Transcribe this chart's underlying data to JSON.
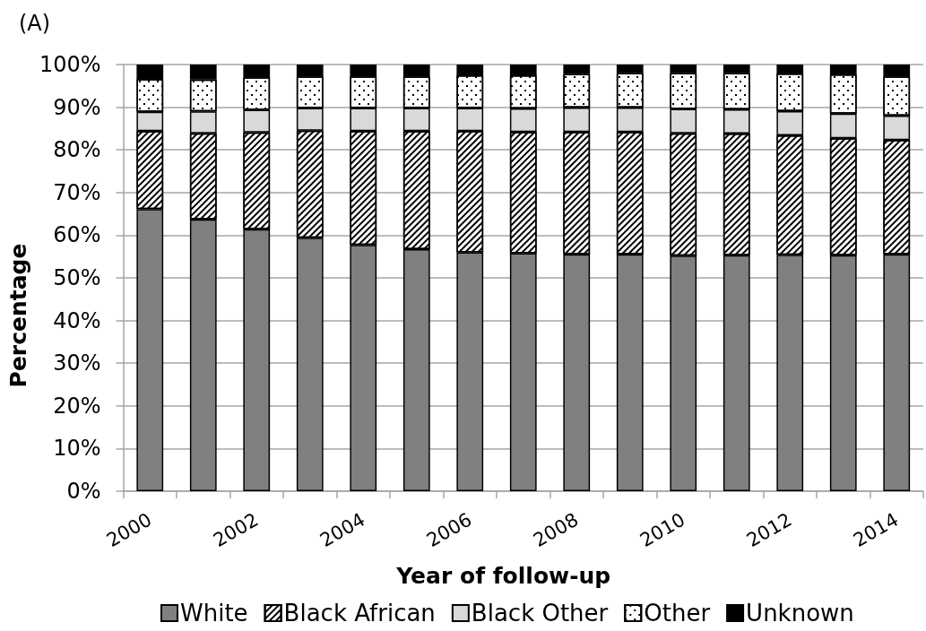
{
  "chart_data": {
    "type": "bar",
    "title": "(A)",
    "xlabel": "Year of follow-up",
    "ylabel": "Percentage",
    "categories": [
      "2000",
      null,
      "2002",
      null,
      "2004",
      null,
      "2006",
      null,
      "2008",
      null,
      "2010",
      null,
      "2012",
      null,
      "2014"
    ],
    "series": [
      {
        "name": "White",
        "color": "#808080",
        "values": [
          66.1,
          63.7,
          61.4,
          59.4,
          57.7,
          56.7,
          56.0,
          55.8,
          55.5,
          55.5,
          55.2,
          55.3,
          55.4,
          55.3,
          55.5
        ]
      },
      {
        "name": "Black African",
        "color": "#ffffff",
        "values": [
          18.3,
          20.2,
          22.7,
          25.1,
          26.7,
          27.7,
          28.4,
          28.4,
          28.7,
          28.7,
          28.7,
          28.5,
          28.0,
          27.4,
          26.8
        ]
      },
      {
        "name": "Black Other",
        "color": "#d9d9d9",
        "values": [
          4.5,
          5.1,
          5.3,
          5.3,
          5.4,
          5.4,
          5.4,
          5.5,
          5.7,
          5.7,
          5.7,
          5.7,
          5.7,
          5.8,
          5.7
        ]
      },
      {
        "name": "Other",
        "color": "#ffffff",
        "values": [
          7.7,
          7.5,
          7.6,
          7.4,
          7.4,
          7.4,
          7.7,
          7.8,
          7.9,
          8.1,
          8.4,
          8.5,
          8.8,
          9.2,
          9.2
        ]
      },
      {
        "name": "Unknown",
        "color": "#000000",
        "values": [
          3.4,
          3.5,
          3.0,
          2.8,
          2.8,
          2.8,
          2.5,
          2.5,
          2.2,
          2.0,
          2.0,
          2.0,
          2.1,
          2.3,
          2.8
        ]
      }
    ],
    "stacked": true,
    "ylim": [
      0,
      100
    ],
    "yticks": [
      {
        "value": 0,
        "label": "0%"
      },
      {
        "value": 10,
        "label": "10%"
      },
      {
        "value": 20,
        "label": "20%"
      },
      {
        "value": 30,
        "label": "30%"
      },
      {
        "value": 40,
        "label": "40%"
      },
      {
        "value": 50,
        "label": "50%"
      },
      {
        "value": 60,
        "label": "60%"
      },
      {
        "value": 70,
        "label": "70%"
      },
      {
        "value": 80,
        "label": "80%"
      },
      {
        "value": 90,
        "label": "90%"
      },
      {
        "value": 100,
        "label": "100%"
      }
    ],
    "grid": "y",
    "legend": "bottom"
  }
}
